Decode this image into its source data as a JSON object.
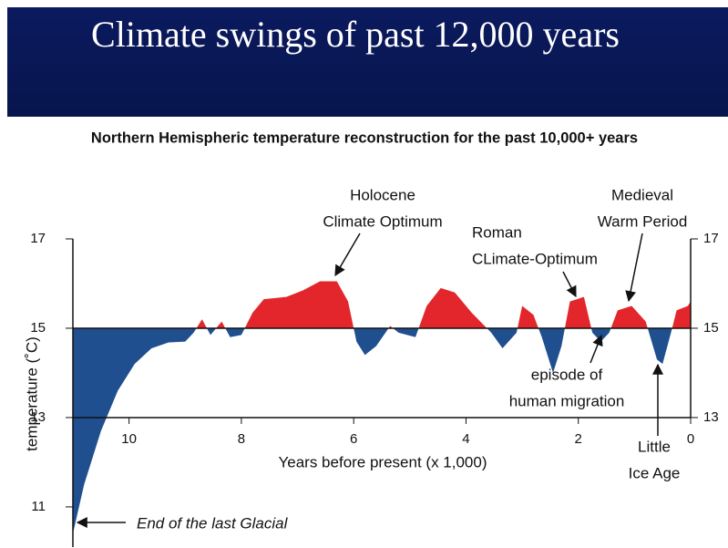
{
  "slide": {
    "title": "Climate swings of past 12,000 years"
  },
  "chart_data": {
    "type": "area",
    "title": "Northern Hemispheric temperature reconstruction for the past 10,000+ years",
    "x_label": "Years before present (x 1,000)",
    "y_label": "temperature (˚C)",
    "x": [
      11,
      10.8,
      10.5,
      10.2,
      9.9,
      9.6,
      9.3,
      9.0,
      8.85,
      8.7,
      8.55,
      8.35,
      8.2,
      8.0,
      7.8,
      7.6,
      7.2,
      6.9,
      6.6,
      6.3,
      6.1,
      5.95,
      5.8,
      5.6,
      5.35,
      5.2,
      4.9,
      4.7,
      4.45,
      4.2,
      3.9,
      3.55,
      3.35,
      3.1,
      3.0,
      2.8,
      2.65,
      2.45,
      2.3,
      2.15,
      1.9,
      1.75,
      1.6,
      1.45,
      1.3,
      1.05,
      0.8,
      0.6,
      0.5,
      0.35,
      0.25,
      0.05,
      0
    ],
    "values": [
      10.4,
      11.5,
      12.7,
      13.6,
      14.2,
      14.55,
      14.68,
      14.7,
      14.9,
      15.2,
      14.85,
      15.15,
      14.8,
      14.85,
      15.35,
      15.65,
      15.7,
      15.85,
      16.05,
      16.05,
      15.6,
      14.7,
      14.4,
      14.6,
      15.05,
      14.9,
      14.8,
      15.5,
      15.9,
      15.8,
      15.35,
      14.9,
      14.55,
      14.9,
      15.5,
      15.3,
      14.8,
      14.0,
      14.6,
      15.6,
      15.7,
      14.9,
      14.7,
      14.9,
      15.4,
      15.5,
      15.15,
      14.3,
      14.2,
      14.9,
      15.4,
      15.5,
      15.6
    ],
    "fill_baseline": 15,
    "color_above": "#e3262b",
    "color_below": "#1f4f8f",
    "x_axis_at": 13,
    "xlim": [
      11,
      0
    ],
    "xticks": [
      10,
      8,
      6,
      4,
      2,
      0
    ],
    "ylim": [
      10.1,
      17
    ],
    "yticks": [
      11,
      13,
      15,
      17
    ],
    "y2lim": [
      10.1,
      17
    ],
    "y2ticks": [
      13,
      15,
      17
    ],
    "annotations": [
      {
        "lines": [
          "Holocene",
          "Climate Optimum"
        ]
      },
      {
        "lines": [
          "Roman",
          "CLimate-Optimum"
        ]
      },
      {
        "lines": [
          "Medieval",
          "Warm Period"
        ]
      },
      {
        "lines": [
          "episode of",
          "human migration"
        ]
      },
      {
        "lines": [
          "Little",
          "Ice Age"
        ]
      },
      {
        "lines": [
          "End of the last Glacial"
        ]
      }
    ]
  }
}
